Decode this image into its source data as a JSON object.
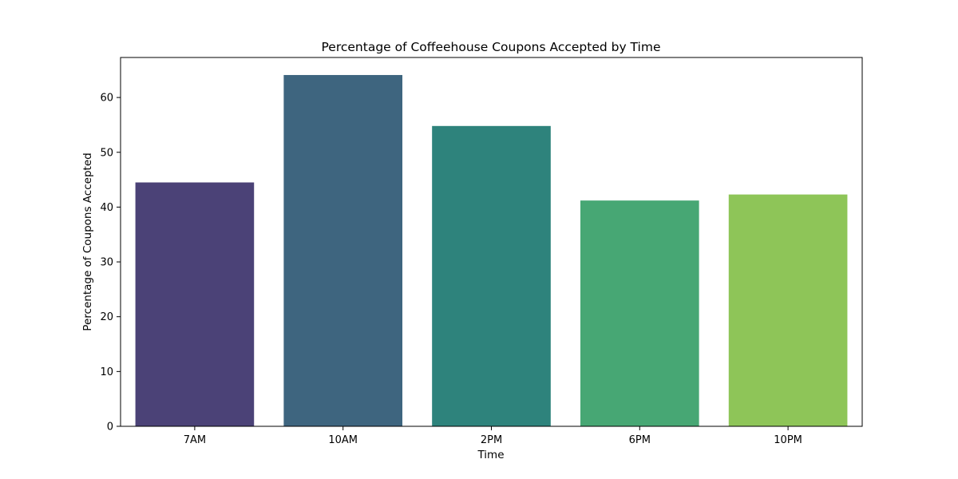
{
  "chart_data": {
    "type": "bar",
    "title": "Percentage of Coffeehouse Coupons Accepted by Time",
    "xlabel": "Time",
    "ylabel": "Percentage of Coupons Accepted",
    "categories": [
      "7AM",
      "10AM",
      "2PM",
      "6PM",
      "10PM"
    ],
    "values": [
      44.5,
      64.1,
      54.8,
      41.2,
      42.3
    ],
    "colors": [
      "#4b4277",
      "#3e657f",
      "#2e837c",
      "#47a774",
      "#8ec558"
    ],
    "ylim": [
      0,
      67.3
    ],
    "yticks": [
      0,
      10,
      20,
      30,
      40,
      50,
      60
    ],
    "grid": false,
    "legend": "none"
  }
}
